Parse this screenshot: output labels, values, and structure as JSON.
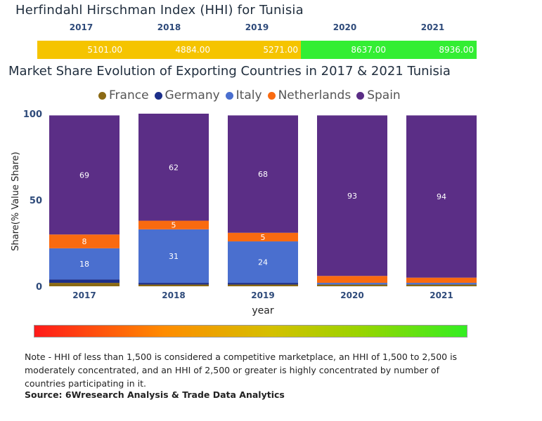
{
  "hhi": {
    "title": "Herfindahl Hirschman Index (HHI) for Tunisia",
    "years": [
      "2017",
      "2018",
      "2019",
      "2020",
      "2021"
    ],
    "values": [
      "5101.00",
      "4884.00",
      "5271.00",
      "8637.00",
      "8936.00"
    ],
    "colors": [
      "#f5c400",
      "#f5c400",
      "#f5c400",
      "#33ee33",
      "#33ee33"
    ]
  },
  "chart_data": {
    "type": "bar",
    "stacked": true,
    "title": "Market Share Evolution of Exporting Countries in 2017 & 2021 Tunisia",
    "xlabel": "year",
    "ylabel": "Share(% Value Share)",
    "ylim": [
      0,
      100
    ],
    "yticks": [
      "0",
      "50",
      "100"
    ],
    "categories": [
      "2017",
      "2018",
      "2019",
      "2020",
      "2021"
    ],
    "series": [
      {
        "name": "France",
        "color": "#8b6a14",
        "values": [
          2,
          1,
          1,
          1,
          1
        ]
      },
      {
        "name": "Germany",
        "color": "#1c2f8a",
        "values": [
          2,
          1,
          1,
          0,
          0
        ]
      },
      {
        "name": "Italy",
        "color": "#4a6fcf",
        "values": [
          18,
          31,
          24,
          1,
          1
        ]
      },
      {
        "name": "Netherlands",
        "color": "#f96a10",
        "values": [
          8,
          5,
          5,
          4,
          3
        ]
      },
      {
        "name": "Spain",
        "color": "#5b2e86",
        "values": [
          69,
          62,
          68,
          93,
          94
        ]
      }
    ],
    "data_labels": {
      "Italy": [
        "18",
        "31",
        "24",
        "",
        ""
      ],
      "Netherlands": [
        "8",
        "5",
        "5",
        "",
        ""
      ],
      "Spain": [
        "69",
        "62",
        "68",
        "93",
        "94"
      ]
    }
  },
  "note": "Note - HHI of less than 1,500 is considered a competitive marketplace, an HHI of 1,500 to 2,500 is moderately concentrated, and an HHI of 2,500 or greater is highly concentrated by number of countries participating in it.",
  "source": "Source: 6Wresearch Analysis & Trade Data Analytics"
}
